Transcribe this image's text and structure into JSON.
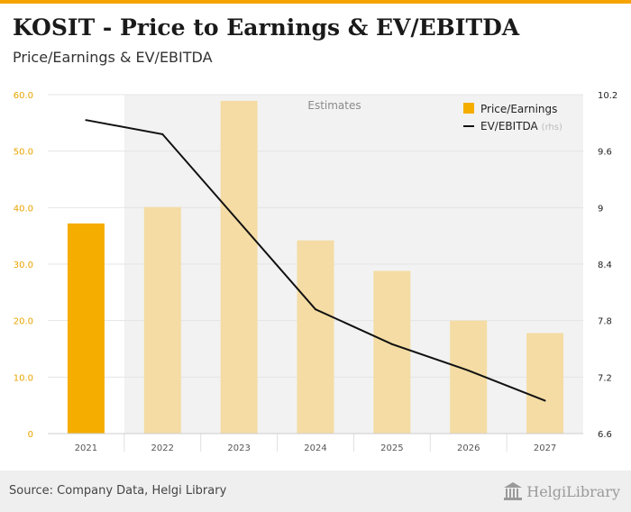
{
  "header": {
    "title": "KOSIT - Price to Earnings & EV/EBITDA",
    "subtitle": "Price/Earnings & EV/EBITDA"
  },
  "footer": {
    "source": "Source: Company Data, Helgi Library",
    "logo_text": "HelgiLibrary"
  },
  "colors": {
    "accent": "#f5a300",
    "bar_actual": "#f5ad00",
    "bar_estimate": "#f4dca4",
    "line": "#111111",
    "estimates_shade": "#f2f2f2"
  },
  "chart_data": {
    "type": "bar",
    "categories": [
      "2021",
      "2022",
      "2023",
      "2024",
      "2025",
      "2026",
      "2027"
    ],
    "series": [
      {
        "name": "Price/Earnings",
        "type": "bar",
        "axis": "left",
        "values": [
          37.2,
          40.1,
          58.9,
          34.2,
          28.8,
          20.0,
          17.8
        ],
        "estimate_from_index": 1
      },
      {
        "name": "EV/EBITDA",
        "type": "line",
        "axis": "right",
        "values": [
          9.93,
          9.78,
          8.85,
          7.92,
          7.55,
          7.27,
          6.95
        ]
      }
    ],
    "legend_rhs_tag": "(rhs)",
    "annotation": "Estimates",
    "y_left": {
      "ylim": [
        0,
        60
      ],
      "ticks": [
        0,
        10,
        20,
        30,
        40,
        50,
        60
      ],
      "tick_labels": [
        "0",
        "10.0",
        "20.0",
        "30.0",
        "40.0",
        "50.0",
        "60.0"
      ]
    },
    "y_right": {
      "ylim": [
        6.6,
        10.2
      ],
      "ticks": [
        6.6,
        7.2,
        7.8,
        8.4,
        9.0,
        9.6,
        10.2
      ],
      "tick_labels": [
        "6.6",
        "7.2",
        "7.8",
        "8.4",
        "9",
        "9.6",
        "10.2"
      ]
    },
    "grid": true,
    "legend_position": "top-right"
  }
}
